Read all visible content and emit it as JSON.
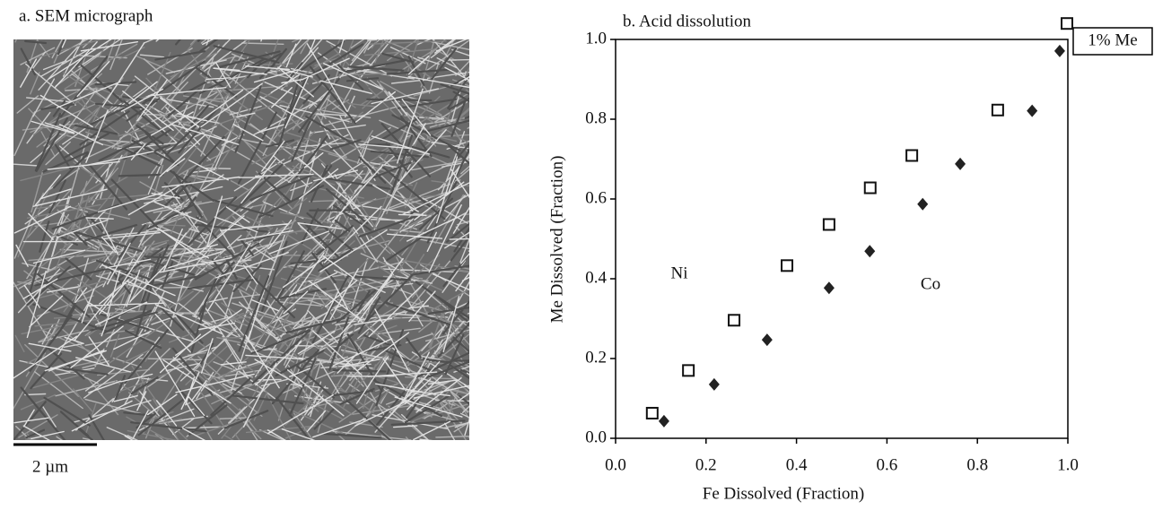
{
  "micrograph": {
    "title": "a. SEM micrograph",
    "scale_label": "2 µm"
  },
  "chart_data": {
    "type": "scatter",
    "title": "b. Acid dissolution",
    "x_label": "Fe Dissolved (Fraction)",
    "y_label": "Me Dissolved (Fraction)",
    "annotation": "1% Me",
    "xlim": [
      0,
      1
    ],
    "ylim": [
      0,
      1
    ],
    "xticks": [
      {
        "value": 0,
        "label": "0.0"
      },
      0.2,
      0.4,
      0.6,
      0.8,
      {
        "value": 1,
        "label": "1.0"
      }
    ],
    "yticks": [
      {
        "value": 0,
        "label": "0.0"
      },
      0.2,
      0.4,
      0.6,
      0.8,
      {
        "value": 1,
        "label": "1.0"
      }
    ],
    "series": [
      {
        "name": "Ni",
        "color": "#111111",
        "marker": "square-open",
        "x": [
          0.081,
          0.161,
          0.262,
          0.379,
          0.472,
          0.563,
          0.655,
          0.845,
          0.998
        ],
        "values": [
          0.063,
          0.17,
          0.296,
          0.433,
          0.536,
          0.628,
          0.709,
          0.823,
          1.04
        ]
      },
      {
        "name": "Co",
        "color": "#222222",
        "marker": "diamond",
        "x": [
          0.107,
          0.218,
          0.335,
          0.472,
          0.562,
          0.679,
          0.762,
          0.921,
          0.982
        ],
        "values": [
          0.043,
          0.135,
          0.247,
          0.377,
          0.469,
          0.587,
          0.688,
          0.821,
          0.971
        ]
      }
    ]
  }
}
